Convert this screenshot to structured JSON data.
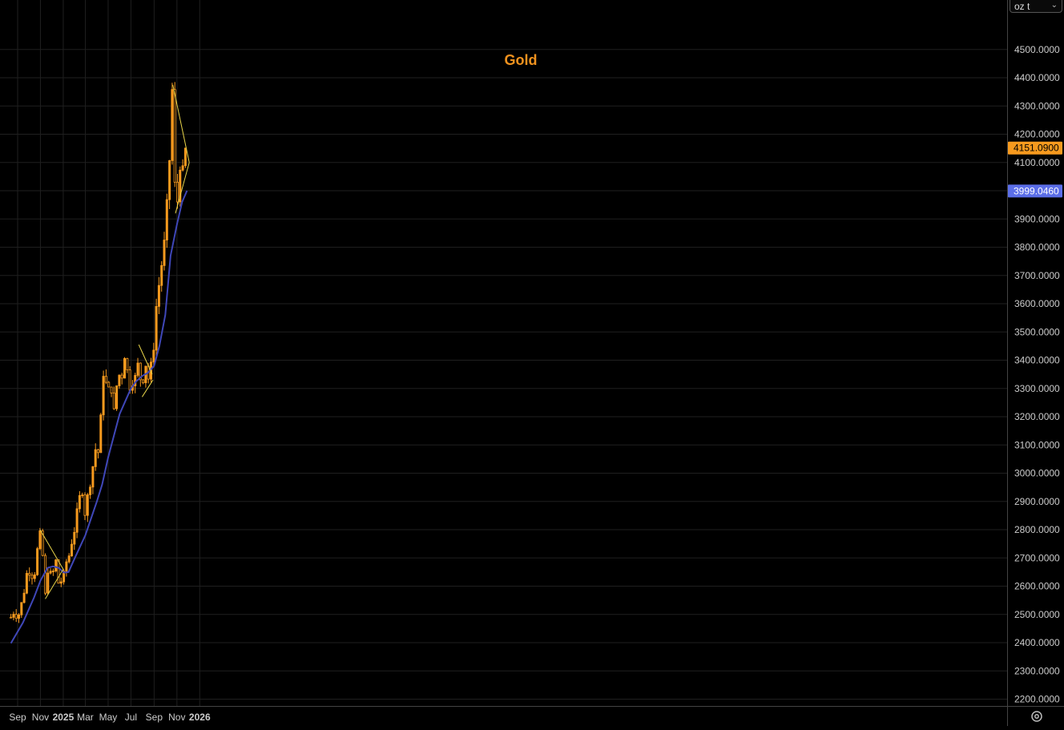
{
  "chart_data": {
    "type": "candlestick",
    "title": "Gold",
    "unit": "oz t",
    "ylim": [
      2200,
      4500
    ],
    "y_ticks": [
      "2200.0000",
      "2300.0000",
      "2400.0000",
      "2500.0000",
      "2600.0000",
      "2700.0000",
      "2800.0000",
      "2900.0000",
      "3000.0000",
      "3100.0000",
      "3200.0000",
      "3300.0000",
      "3400.0000",
      "3500.0000",
      "3600.0000",
      "3700.0000",
      "3800.0000",
      "3900.0000",
      "4000.0000",
      "4100.0000",
      "4200.0000",
      "4300.0000",
      "4400.0000",
      "4500.0000"
    ],
    "x_ticks": [
      "Sep",
      "Nov",
      "2025",
      "Mar",
      "May",
      "Jul",
      "Sep",
      "Nov",
      "2026"
    ],
    "price_path": [
      [
        "2024-08-14",
        2490
      ],
      [
        "2024-08-20",
        2510
      ],
      [
        "2024-08-26",
        2500
      ],
      [
        "2024-09-03",
        2495
      ],
      [
        "2024-09-10",
        2530
      ],
      [
        "2024-09-17",
        2570
      ],
      [
        "2024-09-24",
        2640
      ],
      [
        "2024-09-30",
        2655
      ],
      [
        "2024-10-07",
        2650
      ],
      [
        "2024-10-14",
        2620
      ],
      [
        "2024-10-21",
        2700
      ],
      [
        "2024-10-25",
        2740
      ],
      [
        "2024-10-30",
        2785
      ],
      [
        "2024-11-04",
        2750
      ],
      [
        "2024-11-08",
        2690
      ],
      [
        "2024-11-12",
        2610
      ],
      [
        "2024-11-14",
        2565
      ],
      [
        "2024-11-18",
        2600
      ],
      [
        "2024-11-22",
        2680
      ],
      [
        "2024-11-27",
        2640
      ],
      [
        "2024-12-03",
        2645
      ],
      [
        "2024-12-09",
        2660
      ],
      [
        "2024-12-12",
        2690
      ],
      [
        "2024-12-17",
        2650
      ],
      [
        "2024-12-20",
        2600
      ],
      [
        "2024-12-27",
        2620
      ],
      [
        "2025-01-03",
        2640
      ],
      [
        "2025-01-10",
        2690
      ],
      [
        "2025-01-17",
        2710
      ],
      [
        "2025-01-24",
        2760
      ],
      [
        "2025-01-31",
        2800
      ],
      [
        "2025-02-07",
        2860
      ],
      [
        "2025-02-11",
        2900
      ],
      [
        "2025-02-18",
        2930
      ],
      [
        "2025-02-24",
        2950
      ],
      [
        "2025-02-28",
        2860
      ],
      [
        "2025-03-06",
        2910
      ],
      [
        "2025-03-12",
        2940
      ],
      [
        "2025-03-18",
        3020
      ],
      [
        "2025-03-24",
        3030
      ],
      [
        "2025-03-31",
        3120
      ],
      [
        "2025-04-03",
        3110
      ],
      [
        "2025-04-08",
        2975
      ],
      [
        "2025-04-10",
        3170
      ],
      [
        "2025-04-14",
        3230
      ],
      [
        "2025-04-17",
        3320
      ],
      [
        "2025-04-21",
        3420
      ],
      [
        "2025-04-23",
        3300
      ],
      [
        "2025-04-28",
        3330
      ],
      [
        "2025-05-01",
        3240
      ],
      [
        "2025-05-06",
        3400
      ],
      [
        "2025-05-09",
        3320
      ],
      [
        "2025-05-14",
        3180
      ],
      [
        "2025-05-16",
        3200
      ],
      [
        "2025-05-21",
        3300
      ],
      [
        "2025-05-27",
        3320
      ],
      [
        "2025-06-03",
        3370
      ],
      [
        "2025-06-10",
        3330
      ],
      [
        "2025-06-13",
        3430
      ],
      [
        "2025-06-20",
        3370
      ],
      [
        "2025-06-26",
        3320
      ],
      [
        "2025-06-30",
        3300
      ],
      [
        "2025-07-03",
        3340
      ],
      [
        "2025-07-09",
        3310
      ],
      [
        "2025-07-14",
        3350
      ],
      [
        "2025-07-18",
        3360
      ],
      [
        "2025-07-22",
        3420
      ],
      [
        "2025-07-25",
        3360
      ],
      [
        "2025-07-30",
        3280
      ],
      [
        "2025-08-04",
        3360
      ],
      [
        "2025-08-08",
        3400
      ],
      [
        "2025-08-13",
        3360
      ],
      [
        "2025-08-19",
        3320
      ],
      [
        "2025-08-22",
        3370
      ],
      [
        "2025-08-27",
        3390
      ],
      [
        "2025-09-01",
        3470
      ],
      [
        "2025-09-05",
        3560
      ],
      [
        "2025-09-10",
        3640
      ],
      [
        "2025-09-16",
        3680
      ],
      [
        "2025-09-22",
        3750
      ],
      [
        "2025-09-26",
        3770
      ],
      [
        "2025-10-01",
        3870
      ],
      [
        "2025-10-06",
        3960
      ],
      [
        "2025-10-08",
        4050
      ],
      [
        "2025-10-13",
        4120
      ],
      [
        "2025-10-15",
        4200
      ],
      [
        "2025-10-17",
        4340
      ],
      [
        "2025-10-20",
        4360
      ],
      [
        "2025-10-22",
        4100
      ],
      [
        "2025-10-24",
        4120
      ],
      [
        "2025-10-28",
        3950
      ],
      [
        "2025-10-31",
        4000
      ],
      [
        "2025-11-04",
        3940
      ],
      [
        "2025-11-06",
        3980
      ],
      [
        "2025-11-10",
        4110
      ],
      [
        "2025-11-13",
        4200
      ],
      [
        "2025-11-17",
        4050
      ],
      [
        "2025-11-20",
        4060
      ],
      [
        "2025-11-24",
        4080
      ],
      [
        "2025-11-27",
        4151.09
      ]
    ],
    "series": [
      {
        "name": "",
        "kind": "moving-average",
        "color": "#3f47b8",
        "last_value": "3999.0460",
        "points": [
          [
            "2024-08-14",
            2398
          ],
          [
            "2024-09-15",
            2470
          ],
          [
            "2024-10-15",
            2560
          ],
          [
            "2024-11-01",
            2620
          ],
          [
            "2024-11-20",
            2665
          ],
          [
            "2024-12-05",
            2670
          ],
          [
            "2024-12-20",
            2665
          ],
          [
            "2025-01-03",
            2648
          ],
          [
            "2025-01-15",
            2650
          ],
          [
            "2025-02-01",
            2700
          ],
          [
            "2025-03-01",
            2780
          ],
          [
            "2025-04-01",
            2900
          ],
          [
            "2025-04-15",
            2960
          ],
          [
            "2025-05-01",
            3055
          ],
          [
            "2025-06-01",
            3210
          ],
          [
            "2025-07-01",
            3300
          ],
          [
            "2025-07-15",
            3325
          ],
          [
            "2025-08-01",
            3345
          ],
          [
            "2025-08-15",
            3355
          ],
          [
            "2025-09-01",
            3380
          ],
          [
            "2025-09-15",
            3450
          ],
          [
            "2025-10-01",
            3560
          ],
          [
            "2025-10-15",
            3770
          ],
          [
            "2025-11-01",
            3880
          ],
          [
            "2025-11-15",
            3960
          ],
          [
            "2025-11-28",
            4000
          ]
        ]
      }
    ],
    "price_label": "4151.0900",
    "annotations": [
      {
        "kind": "trendline",
        "from": [
          "2024-10-31",
          2800
        ],
        "to": [
          "2025-01-01",
          2660
        ]
      },
      {
        "kind": "trendline",
        "from": [
          "2024-11-14",
          2555
        ],
        "to": [
          "2025-01-01",
          2660
        ]
      },
      {
        "kind": "trendline",
        "from": [
          "2025-07-22",
          3455
        ],
        "to": [
          "2025-08-27",
          3350
        ]
      },
      {
        "kind": "trendline",
        "from": [
          "2025-07-31",
          3270
        ],
        "to": [
          "2025-08-29",
          3330
        ]
      },
      {
        "kind": "trendline",
        "from": [
          "2025-10-21",
          4375
        ],
        "to": [
          "2025-12-04",
          4100
        ]
      },
      {
        "kind": "trendline",
        "from": [
          "2025-10-28",
          3920
        ],
        "to": [
          "2025-12-04",
          4100
        ]
      }
    ],
    "grid": true,
    "colors": {
      "background": "#000000",
      "candle": "#f79a1e",
      "title": "#f0921e",
      "trendline": "#e8d44a",
      "price_tag": "#f79a1e",
      "ma_tag": "#5b6ee8",
      "axis_text": "#cccccc",
      "grid": "#1f1f1f"
    }
  },
  "icons": {
    "settings": "gear-icon",
    "unit_dropdown": "chevron-down-icon"
  }
}
